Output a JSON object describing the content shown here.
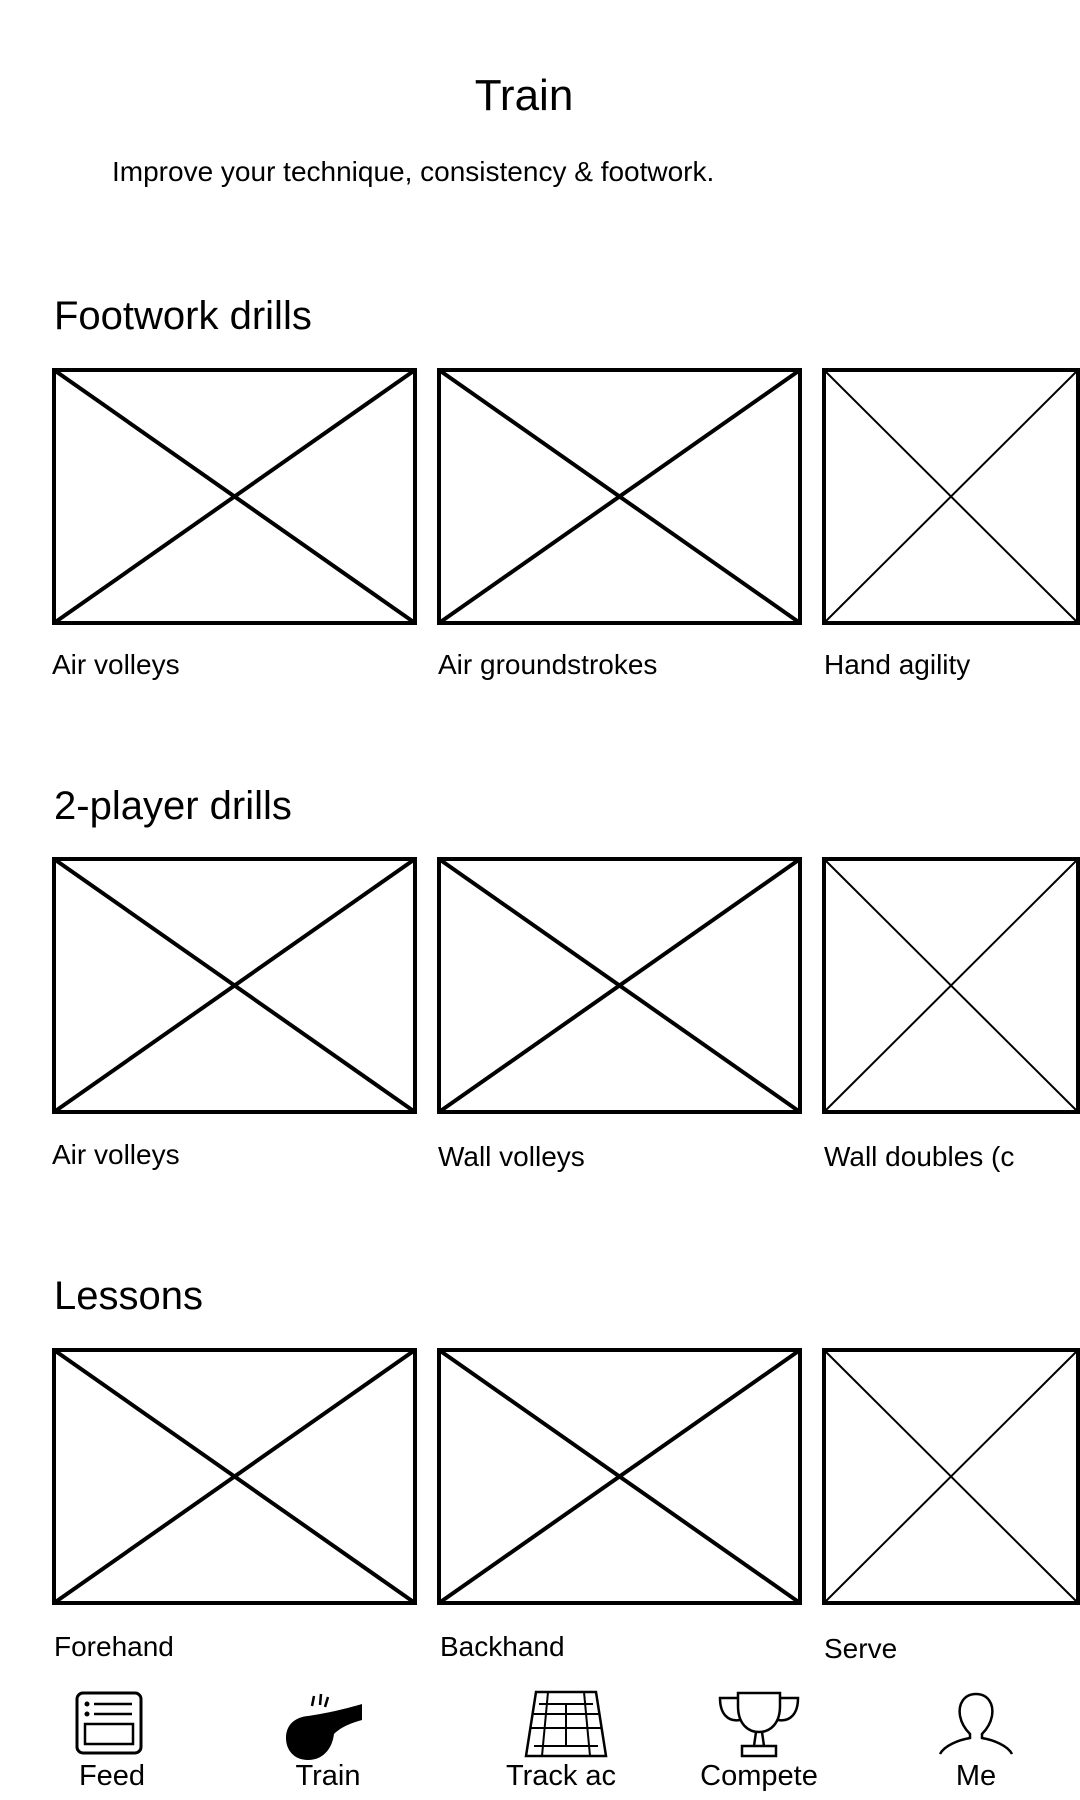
{
  "header": {
    "title": "Train",
    "subtitle": "Improve your technique, consistency & footwork."
  },
  "sections": [
    {
      "title": "Footwork drills",
      "items": [
        {
          "label": "Air volleys"
        },
        {
          "label": "Air groundstrokes"
        },
        {
          "label": "Hand agility"
        }
      ]
    },
    {
      "title": "2-player drills",
      "items": [
        {
          "label": "Air volleys"
        },
        {
          "label": "Wall volleys"
        },
        {
          "label": "Wall doubles (c"
        }
      ]
    },
    {
      "title": "Lessons",
      "items": [
        {
          "label": "Forehand"
        },
        {
          "label": "Backhand"
        },
        {
          "label": "Serve"
        }
      ]
    }
  ],
  "tabbar": {
    "tabs": [
      {
        "label": "Feed",
        "icon": "feed-icon"
      },
      {
        "label": "Train",
        "icon": "whistle-icon",
        "selected": true
      },
      {
        "label": "Track ac",
        "icon": "court-icon"
      },
      {
        "label": "Compete",
        "icon": "trophy-icon"
      },
      {
        "label": "Me",
        "icon": "person-icon"
      }
    ]
  },
  "colors": {
    "background": "#ffffff",
    "ink": "#000000"
  }
}
